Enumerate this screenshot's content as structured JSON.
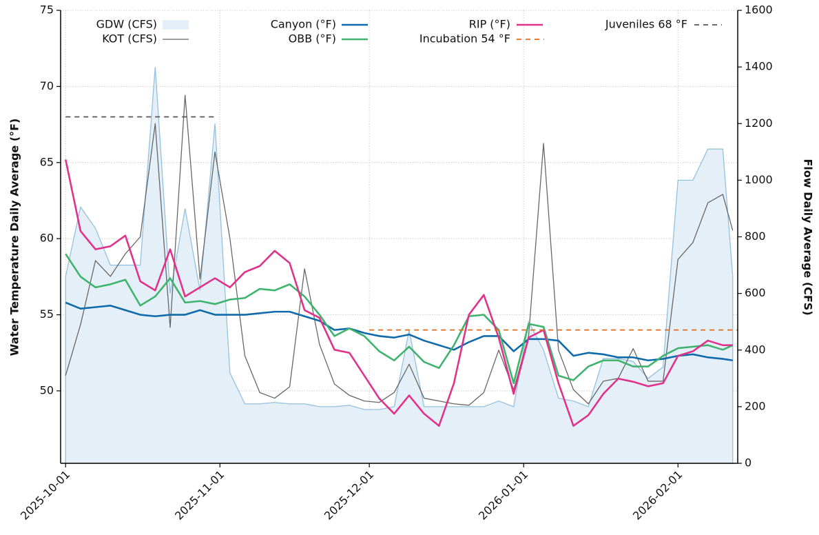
{
  "chart_data": {
    "type": "line",
    "ylabel": "Water Temperature Daily Average (°F)",
    "y2label": "Flow Daily Average (CFS)",
    "x": [
      "2025-10-01",
      "2025-10-04",
      "2025-10-07",
      "2025-10-10",
      "2025-10-13",
      "2025-10-16",
      "2025-10-19",
      "2025-10-22",
      "2025-10-25",
      "2025-10-28",
      "2025-10-31",
      "2025-11-03",
      "2025-11-06",
      "2025-11-09",
      "2025-11-12",
      "2025-11-15",
      "2025-11-18",
      "2025-11-21",
      "2025-11-24",
      "2025-11-27",
      "2025-11-30",
      "2025-12-03",
      "2025-12-06",
      "2025-12-09",
      "2025-12-12",
      "2025-12-15",
      "2025-12-18",
      "2025-12-21",
      "2025-12-24",
      "2025-12-27",
      "2025-12-30",
      "2026-01-02",
      "2026-01-05",
      "2026-01-08",
      "2026-01-11",
      "2026-01-14",
      "2026-01-17",
      "2026-01-20",
      "2026-01-23",
      "2026-01-26",
      "2026-01-29",
      "2026-02-01",
      "2026-02-04",
      "2026-02-07",
      "2026-02-10",
      "2026-02-12"
    ],
    "xlim": [
      "2025-09-30",
      "2026-02-13"
    ],
    "xticks": [
      "2025-10-01",
      "2025-11-01",
      "2025-12-01",
      "2026-01-01",
      "2026-02-01"
    ],
    "ylim": [
      45.24,
      75
    ],
    "yticks": [
      50,
      55,
      60,
      65,
      70,
      75
    ],
    "y2lim": [
      0,
      1600
    ],
    "y2ticks": [
      0,
      200,
      400,
      600,
      800,
      1000,
      1200,
      1400,
      1600
    ],
    "grid": true,
    "legend": "upper center",
    "series": [
      {
        "name": "GDW (CFS)",
        "color": "#93c1de",
        "fill": "#e4eff7",
        "axis": "y2",
        "values": [
          660,
          905,
          830,
          700,
          700,
          700,
          1400,
          600,
          900,
          610,
          1200,
          320,
          210,
          210,
          215,
          210,
          210,
          200,
          200,
          205,
          190,
          190,
          200,
          470,
          200,
          200,
          200,
          200,
          200,
          220,
          200,
          500,
          400,
          230,
          220,
          200,
          370,
          370,
          360,
          300,
          340,
          1000,
          1000,
          1110,
          1110,
          660
        ]
      },
      {
        "name": "KOT (CFS)",
        "color": "#666666",
        "axis": "y2",
        "values": [
          310,
          490,
          716,
          660,
          740,
          800,
          1200,
          480,
          1300,
          650,
          1100,
          795,
          380,
          250,
          230,
          270,
          687,
          420,
          280,
          240,
          220,
          215,
          250,
          350,
          230,
          220,
          210,
          205,
          250,
          400,
          260,
          450,
          1130,
          400,
          260,
          210,
          290,
          300,
          405,
          290,
          290,
          720,
          780,
          920,
          950,
          822
        ]
      },
      {
        "name": "Canyon (°F)",
        "color": "#0f6aab",
        "values": [
          55.8,
          55.4,
          55.5,
          55.6,
          55.3,
          55.0,
          54.9,
          55.0,
          55.0,
          55.3,
          55.0,
          55.0,
          55.0,
          55.1,
          55.2,
          55.2,
          54.9,
          54.6,
          54.0,
          54.1,
          53.8,
          53.6,
          53.5,
          53.7,
          53.3,
          53.0,
          52.7,
          53.2,
          53.6,
          53.6,
          52.6,
          53.4,
          53.4,
          53.3,
          52.3,
          52.5,
          52.4,
          52.2,
          52.2,
          52.0,
          52.1,
          52.3,
          52.4,
          52.2,
          52.1,
          52.0
        ]
      },
      {
        "name": "OBB (°F)",
        "color": "#3fb36e",
        "values": [
          59.0,
          57.5,
          56.8,
          57.0,
          57.3,
          55.6,
          56.2,
          57.4,
          55.8,
          55.9,
          55.7,
          56.0,
          56.1,
          56.7,
          56.6,
          57.0,
          56.2,
          55.0,
          53.6,
          54.1,
          53.6,
          52.6,
          52.0,
          52.9,
          51.9,
          51.5,
          53.0,
          54.9,
          55.0,
          54.0,
          50.5,
          54.4,
          54.2,
          51.0,
          50.7,
          51.6,
          52.0,
          52.0,
          51.6,
          51.6,
          52.3,
          52.8,
          52.9,
          53.0,
          52.7,
          53.0
        ]
      },
      {
        "name": "RIP (°F)",
        "color": "#e0328a",
        "values": [
          65.2,
          60.5,
          59.3,
          59.5,
          60.2,
          57.2,
          56.6,
          59.3,
          56.2,
          56.8,
          57.4,
          56.8,
          57.8,
          58.2,
          59.2,
          58.4,
          55.3,
          54.8,
          52.7,
          52.5,
          51.0,
          49.5,
          48.5,
          49.7,
          48.5,
          47.7,
          50.5,
          55.0,
          56.3,
          53.5,
          49.8,
          53.5,
          54.0,
          50.5,
          47.7,
          48.4,
          49.8,
          50.8,
          50.6,
          50.3,
          50.5,
          52.3,
          52.6,
          53.3,
          53.0,
          53.0
        ]
      }
    ],
    "reference_lines": [
      {
        "name": "Incubation 54 °F",
        "value": 54,
        "color": "#e06a1b",
        "start": "2025-12-01",
        "end": "2026-02-13"
      },
      {
        "name": "Juveniles 68 °F",
        "value": 68,
        "color": "#555555",
        "start": "2025-10-01",
        "end": "2025-10-31"
      }
    ]
  }
}
